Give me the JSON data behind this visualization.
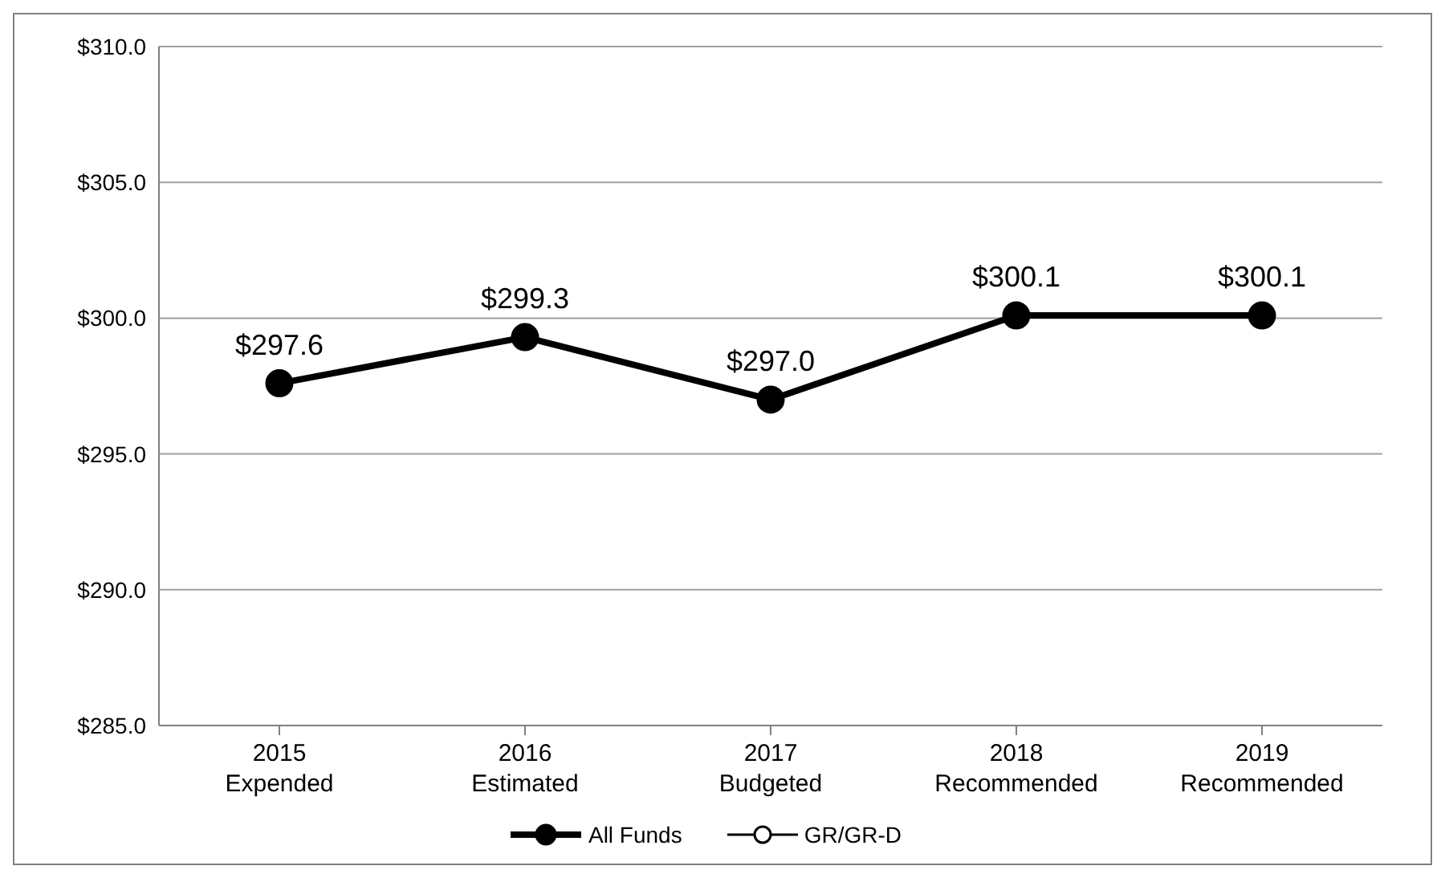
{
  "chart_data": {
    "type": "line",
    "categories": [
      "2015\nExpended",
      "2016\nEstimated",
      "2017\nBudgeted",
      "2018\nRecommended",
      "2019\nRecommended"
    ],
    "series": [
      {
        "name": "All Funds",
        "color": "#000000",
        "values": [
          297.6,
          299.3,
          297.0,
          300.1,
          300.1
        ],
        "value_labels": [
          "$297.6",
          "$299.3",
          "$297.0",
          "$300.1",
          "$300.1"
        ]
      },
      {
        "name": "GR/GR-D",
        "color": "#000000",
        "values": [
          null,
          null,
          null,
          null,
          null
        ]
      }
    ],
    "ylim": [
      285,
      310
    ],
    "yticks": [
      {
        "value": 285,
        "label": "$285.0"
      },
      {
        "value": 290,
        "label": "$290.0"
      },
      {
        "value": 295,
        "label": "$295.0"
      },
      {
        "value": 300,
        "label": "$300.0"
      },
      {
        "value": 305,
        "label": "$305.0"
      },
      {
        "value": 310,
        "label": "$310.0"
      }
    ],
    "grid": "y",
    "legend": "bottom",
    "marker": "circle",
    "line_style": "solid"
  }
}
